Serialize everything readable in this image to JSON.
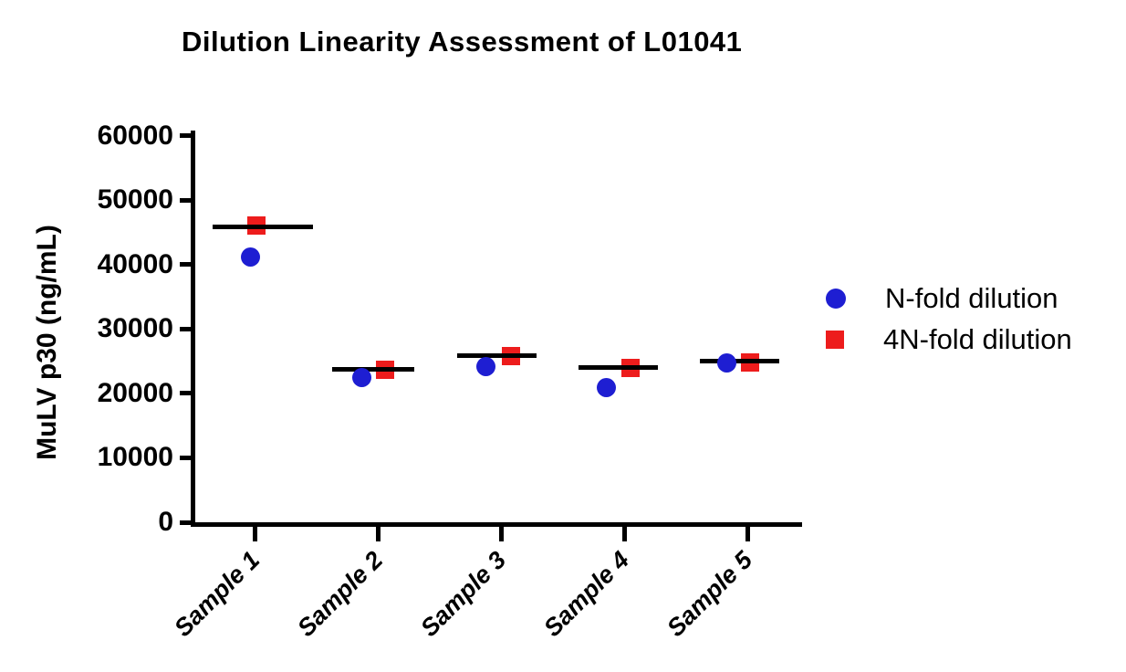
{
  "chart_data": {
    "type": "scatter",
    "title": "Dilution Linearity Assessment of L01041",
    "xlabel": "",
    "ylabel": "MuLV p30 (ng/mL)",
    "ylim": [
      0,
      60000
    ],
    "ytick_step": 10000,
    "yticks": [
      0,
      10000,
      20000,
      30000,
      40000,
      50000,
      60000
    ],
    "ytick_labels": [
      "0",
      "10000",
      "20000",
      "30000",
      "40000",
      "50000",
      "60000"
    ],
    "categories": [
      "Sample 1",
      "Sample 2",
      "Sample 3",
      "Sample 4",
      "Sample 5"
    ],
    "series": [
      {
        "name": "N-fold dilution",
        "marker": "circle",
        "color": "#1E1ED2",
        "values": [
          41200,
          22400,
          24100,
          20900,
          24800
        ]
      },
      {
        "name": "4N-fold dilution",
        "marker": "square",
        "color": "#ED1C1C",
        "values": [
          46000,
          23700,
          25800,
          24000,
          24800
        ]
      }
    ],
    "mean_lines": [
      45900,
      23800,
      25900,
      24000,
      25000
    ],
    "grid": false,
    "legend_position": "right",
    "axis_color": "#000000",
    "text_color": "#000000",
    "background_color": "#FFFFFF",
    "layout_hints": {
      "series_x_offsets": [
        [
          -5,
          -18,
          -17,
          -20,
          -23
        ],
        [
          2,
          8,
          11,
          7,
          3
        ]
      ],
      "mean_line_x_offsets": [
        9,
        -5,
        -5,
        -7,
        -9
      ],
      "mean_line_lengths": [
        110,
        90,
        87,
        87,
        87
      ],
      "x_labels_rotated_deg": -45
    }
  }
}
